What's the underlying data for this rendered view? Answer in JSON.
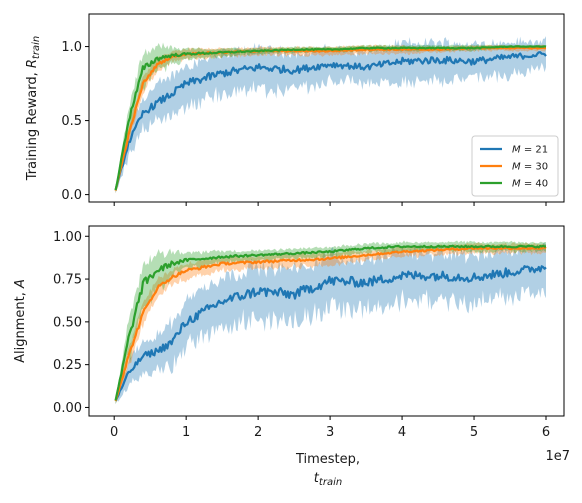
{
  "figure": {
    "x_axis": {
      "label_line1": "Timestep,",
      "label_line2": "t_train",
      "tick_labels": [
        "0",
        "1",
        "2",
        "3",
        "4",
        "5",
        "6"
      ],
      "offset_label": "1e7"
    }
  },
  "colors": {
    "M21": "#1f77b4",
    "M30": "#ff7f0e",
    "M40": "#2ca02c"
  },
  "chart_data": [
    {
      "type": "line",
      "ylabel": "Training Reward, R_train",
      "ylabel_main": "Training Reward, ",
      "ylabel_symbol": "R",
      "ylabel_subscript": "train",
      "xlabel": "Timestep, t_train",
      "xlim": [
        -0.35,
        6.25
      ],
      "ylim": [
        -0.05,
        1.22
      ],
      "x_scale_note": "1e7",
      "y_tick_labels": [
        "0.0",
        "0.5",
        "1.0"
      ],
      "y_ticks": [
        0,
        0.5,
        1.0
      ],
      "x": [
        0.02,
        0.2,
        0.4,
        0.6,
        0.8,
        1.0,
        1.5,
        2.0,
        2.5,
        3.0,
        3.5,
        4.0,
        4.5,
        5.0,
        5.5,
        6.0
      ],
      "legend": {
        "placement": "lower-right",
        "entries": [
          "M = 21",
          "M = 30",
          "M = 40"
        ]
      },
      "series": [
        {
          "name": "M = 21",
          "color_key": "M21",
          "values": [
            0.03,
            0.35,
            0.55,
            0.62,
            0.68,
            0.75,
            0.82,
            0.86,
            0.84,
            0.88,
            0.86,
            0.9,
            0.91,
            0.9,
            0.93,
            0.95
          ],
          "spread": [
            0.02,
            0.1,
            0.12,
            0.14,
            0.14,
            0.15,
            0.15,
            0.15,
            0.14,
            0.12,
            0.12,
            0.14,
            0.14,
            0.13,
            0.12,
            0.1
          ]
        },
        {
          "name": "M = 30",
          "color_key": "M30",
          "values": [
            0.03,
            0.4,
            0.75,
            0.88,
            0.93,
            0.95,
            0.96,
            0.97,
            0.97,
            0.97,
            0.98,
            0.98,
            0.98,
            0.99,
            0.99,
            0.99
          ],
          "spread": [
            0.02,
            0.06,
            0.06,
            0.05,
            0.04,
            0.04,
            0.03,
            0.03,
            0.03,
            0.03,
            0.03,
            0.03,
            0.02,
            0.02,
            0.02,
            0.02
          ]
        },
        {
          "name": "M = 40",
          "color_key": "M40",
          "values": [
            0.03,
            0.5,
            0.85,
            0.92,
            0.94,
            0.95,
            0.96,
            0.97,
            0.98,
            0.98,
            0.99,
            0.99,
            0.99,
            0.99,
            1.0,
            1.0
          ],
          "spread": [
            0.02,
            0.1,
            0.12,
            0.1,
            0.06,
            0.04,
            0.03,
            0.02,
            0.02,
            0.02,
            0.02,
            0.02,
            0.02,
            0.02,
            0.01,
            0.01
          ]
        }
      ]
    },
    {
      "type": "line",
      "ylabel": "Alignment, A",
      "ylabel_main": "Alignment, ",
      "ylabel_symbol": "A",
      "ylabel_subscript": "",
      "xlabel": "Timestep, t_train",
      "xlim": [
        -0.35,
        6.25
      ],
      "ylim": [
        -0.05,
        1.06
      ],
      "x_scale_note": "1e7",
      "y_tick_labels": [
        "0.00",
        "0.25",
        "0.50",
        "0.75",
        "1.00"
      ],
      "y_ticks": [
        0,
        0.25,
        0.5,
        0.75,
        1.0
      ],
      "x": [
        0.02,
        0.2,
        0.4,
        0.6,
        0.8,
        1.0,
        1.5,
        2.0,
        2.5,
        3.0,
        3.5,
        4.0,
        4.5,
        5.0,
        5.5,
        6.0
      ],
      "series": [
        {
          "name": "M = 21",
          "color_key": "M21",
          "values": [
            0.04,
            0.2,
            0.3,
            0.33,
            0.38,
            0.5,
            0.62,
            0.68,
            0.66,
            0.74,
            0.73,
            0.77,
            0.77,
            0.76,
            0.79,
            0.82
          ],
          "spread": [
            0.02,
            0.08,
            0.1,
            0.12,
            0.14,
            0.15,
            0.17,
            0.17,
            0.17,
            0.17,
            0.16,
            0.16,
            0.16,
            0.16,
            0.15,
            0.14
          ]
        },
        {
          "name": "M = 30",
          "color_key": "M30",
          "values": [
            0.04,
            0.3,
            0.55,
            0.7,
            0.76,
            0.8,
            0.84,
            0.85,
            0.86,
            0.87,
            0.89,
            0.91,
            0.92,
            0.93,
            0.93,
            0.93
          ],
          "spread": [
            0.02,
            0.06,
            0.07,
            0.06,
            0.05,
            0.05,
            0.04,
            0.04,
            0.04,
            0.04,
            0.03,
            0.03,
            0.03,
            0.03,
            0.03,
            0.03
          ]
        },
        {
          "name": "M = 40",
          "color_key": "M40",
          "values": [
            0.04,
            0.4,
            0.72,
            0.8,
            0.84,
            0.86,
            0.88,
            0.89,
            0.9,
            0.91,
            0.93,
            0.94,
            0.94,
            0.94,
            0.94,
            0.94
          ],
          "spread": [
            0.02,
            0.12,
            0.14,
            0.12,
            0.08,
            0.05,
            0.04,
            0.03,
            0.03,
            0.03,
            0.03,
            0.03,
            0.03,
            0.03,
            0.03,
            0.03
          ]
        }
      ]
    }
  ]
}
